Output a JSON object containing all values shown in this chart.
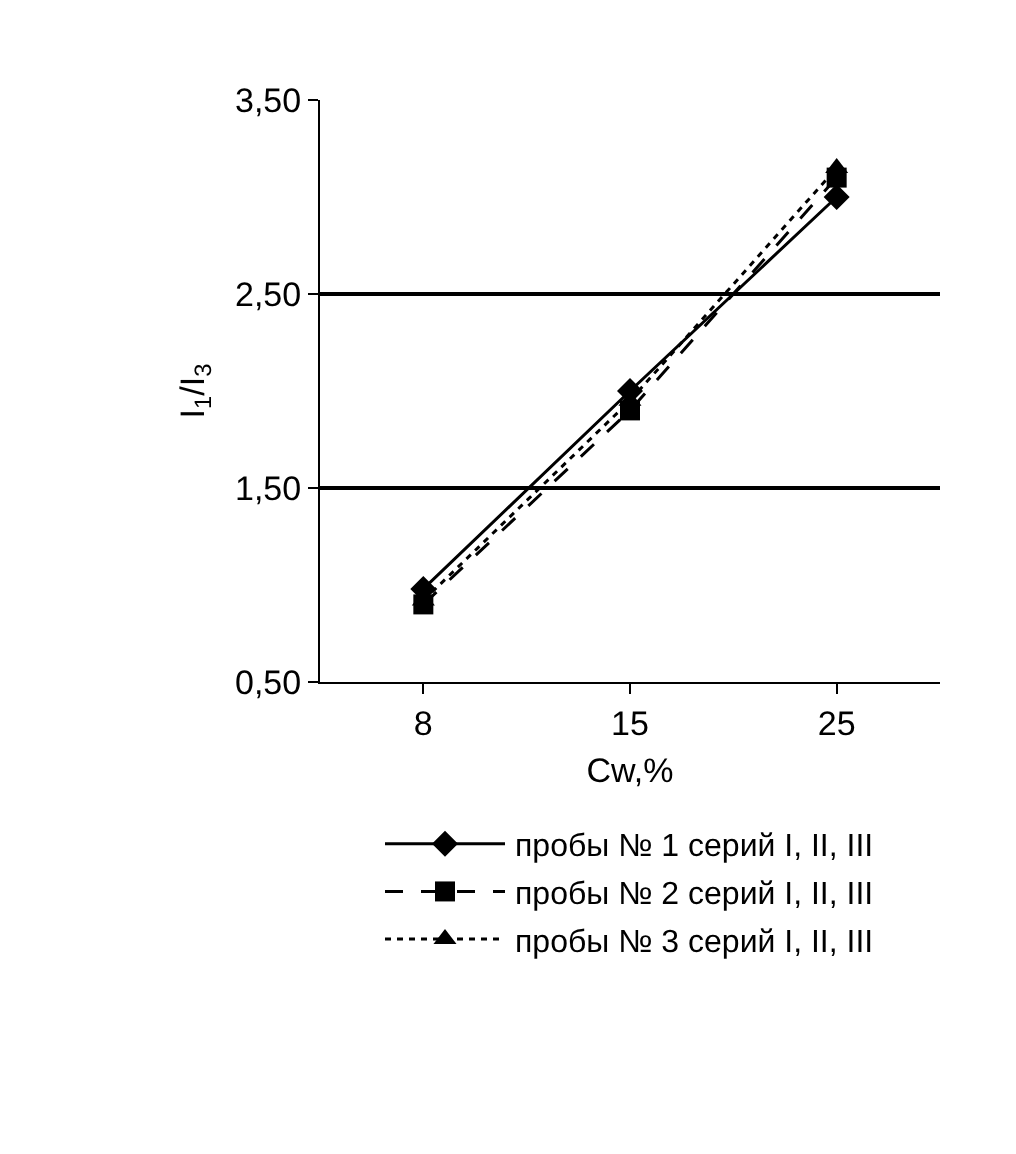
{
  "chart_data": {
    "type": "line",
    "xlabel": "Cw,%",
    "ylabel": "I$_{1}$/I$_{3}$",
    "categories": [
      "8",
      "15",
      "25"
    ],
    "series": [
      {
        "name": "пробы № 1 серий I, II, III",
        "color": "#000000",
        "marker": "diamond",
        "line_style": "solid",
        "values": [
          0.98,
          2.0,
          3.0
        ]
      },
      {
        "name": "пробы № 2 серий I, II, III",
        "color": "#000000",
        "marker": "square",
        "line_style": "dashed",
        "values": [
          0.9,
          1.9,
          3.1
        ]
      },
      {
        "name": "пробы № 3 серий I, II, III",
        "color": "#000000",
        "marker": "triangle",
        "line_style": "dotted",
        "values": [
          0.92,
          1.95,
          3.15
        ]
      }
    ],
    "ylim": [
      0.5,
      3.5
    ],
    "yticks": [
      {
        "value": 0.5,
        "label": "0,50"
      },
      {
        "value": 1.5,
        "label": "1,50"
      },
      {
        "value": 2.5,
        "label": "2,50"
      },
      {
        "value": 3.5,
        "label": "3,50"
      }
    ],
    "grid": "y",
    "legend": "bottom"
  }
}
